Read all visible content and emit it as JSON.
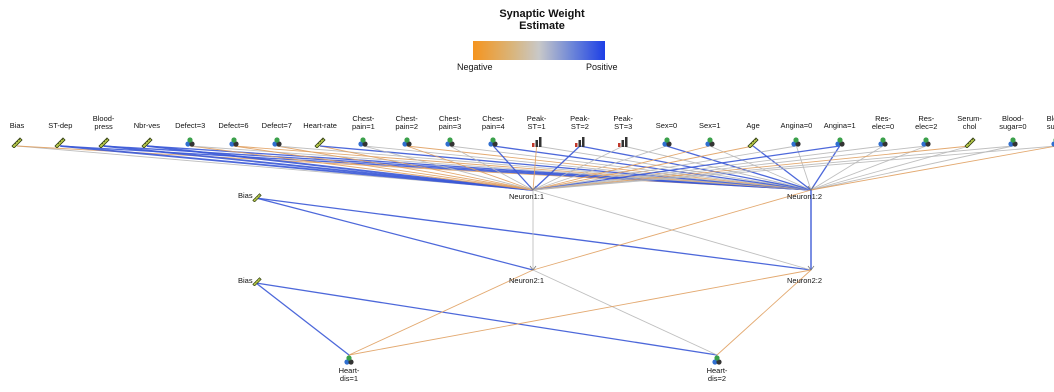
{
  "legend": {
    "title": "Synaptic Weight\nEstimate",
    "negative_label": "Negative",
    "positive_label": "Positive",
    "colors": {
      "negative": "#f5941e",
      "neutral": "#c8c8c8",
      "positive": "#1d3fe6"
    }
  },
  "input_layer": [
    {
      "label": "Bias",
      "icon": "ruler-icon"
    },
    {
      "label": "ST-dep",
      "icon": "ruler-icon"
    },
    {
      "label": "Blood-\npress",
      "icon": "ruler-icon"
    },
    {
      "label": "Nbr-ves",
      "icon": "ruler-icon"
    },
    {
      "label": "Defect=3",
      "icon": "nominal-icon"
    },
    {
      "label": "Defect=6",
      "icon": "nominal-icon"
    },
    {
      "label": "Defect=7",
      "icon": "nominal-icon"
    },
    {
      "label": "Heart-rate",
      "icon": "ruler-icon"
    },
    {
      "label": "Chest-\npain=1",
      "icon": "nominal-icon"
    },
    {
      "label": "Chest-\npain=2",
      "icon": "nominal-icon"
    },
    {
      "label": "Chest-\npain=3",
      "icon": "nominal-icon"
    },
    {
      "label": "Chest-\npain=4",
      "icon": "nominal-icon"
    },
    {
      "label": "Peak-\nST=1",
      "icon": "ordinal-icon"
    },
    {
      "label": "Peak-\nST=2",
      "icon": "ordinal-icon"
    },
    {
      "label": "Peak-\nST=3",
      "icon": "ordinal-icon"
    },
    {
      "label": "Sex=0",
      "icon": "nominal-icon"
    },
    {
      "label": "Sex=1",
      "icon": "nominal-icon"
    },
    {
      "label": "Age",
      "icon": "ruler-icon"
    },
    {
      "label": "Angina=0",
      "icon": "nominal-icon"
    },
    {
      "label": "Angina=1",
      "icon": "nominal-icon"
    },
    {
      "label": "Res-\nelec=0",
      "icon": "nominal-icon"
    },
    {
      "label": "Res-\nelec=2",
      "icon": "nominal-icon"
    },
    {
      "label": "Serum-\nchol",
      "icon": "ruler-icon"
    },
    {
      "label": "Blood-\nsugar=0",
      "icon": "nominal-icon"
    },
    {
      "label": "Blood\nsugar",
      "icon": "nominal-icon"
    }
  ],
  "hidden_layer_1": {
    "bias_label": "Bias",
    "neurons": [
      "Neuron1:1",
      "Neuron1:2"
    ]
  },
  "hidden_layer_2": {
    "bias_label": "Bias",
    "neurons": [
      "Neuron2:1",
      "Neuron2:2"
    ]
  },
  "output_layer": [
    {
      "label": "Heart-\ndis=1",
      "icon": "nominal-icon"
    },
    {
      "label": "Heart-\ndis=2",
      "icon": "nominal-icon"
    }
  ],
  "weights": {
    "input_to_h1_1": [
      "neutral",
      "positive",
      "positive",
      "positive",
      "negative",
      "negative",
      "negative",
      "negative",
      "neutral",
      "negative",
      "neutral",
      "positive",
      "negative",
      "positive",
      "neutral",
      "neutral",
      "negative",
      "negative",
      "neutral",
      "positive",
      "neutral",
      "neutral",
      "negative",
      "neutral",
      "neutral"
    ],
    "input_to_h1_2": [
      "negative",
      "positive",
      "positive",
      "positive",
      "neutral",
      "negative",
      "neutral",
      "positive",
      "neutral",
      "negative",
      "neutral",
      "positive",
      "neutral",
      "positive",
      "neutral",
      "positive",
      "neutral",
      "positive",
      "neutral",
      "positive",
      "neutral",
      "neutral",
      "neutral",
      "neutral",
      "negative"
    ],
    "h1_to_h2": {
      "bias_to_n1": "positive",
      "bias_to_n2": "positive",
      "n1_to_n1": "neutral",
      "n1_to_n2": "neutral",
      "n2_to_n1": "negative",
      "n2_to_n2": "positive"
    },
    "h2_to_out": {
      "bias_to_o1": "positive",
      "bias_to_o2": "positive",
      "n1_to_o1": "negative",
      "n1_to_o2": "neutral",
      "n2_to_o1": "negative",
      "n2_to_o2": "negative"
    }
  }
}
